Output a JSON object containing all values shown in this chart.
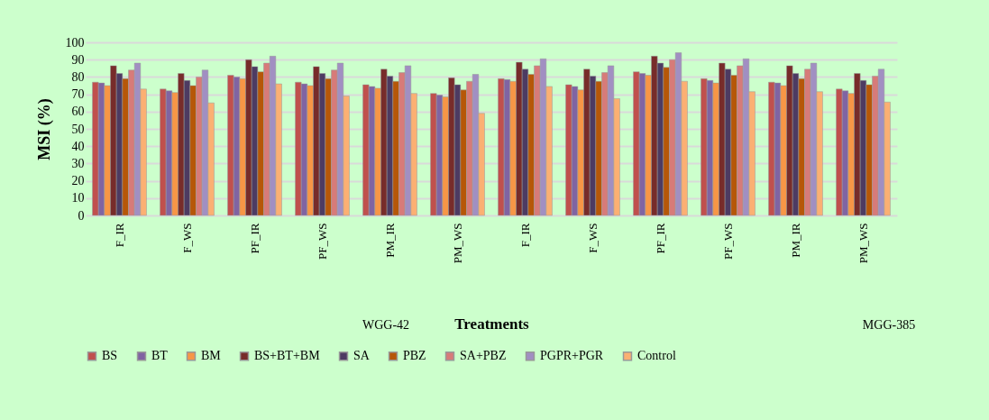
{
  "chart_data": {
    "type": "bar",
    "xlabel": "Treatments",
    "ylabel": "MSI (%)",
    "categories": [
      "F_IR",
      "F_WS",
      "PF_IR",
      "PF_WS",
      "PM_IR",
      "PM_WS",
      "F_IR",
      "F_WS",
      "PF_IR",
      "PF_WS",
      "PM_IR",
      "PM_WS"
    ],
    "series": [
      {
        "name": "BS",
        "color": "#c0504d",
        "values": [
          77,
          73,
          81,
          77,
          75.5,
          70.5,
          79,
          75.5,
          83,
          79,
          77,
          73
        ]
      },
      {
        "name": "BT",
        "color": "#8064a2",
        "values": [
          76.5,
          72,
          80,
          76,
          74.5,
          69.5,
          78.5,
          74.5,
          82,
          78,
          76.5,
          72
        ]
      },
      {
        "name": "BM",
        "color": "#f79646",
        "values": [
          75,
          71,
          79,
          75,
          73.5,
          68.5,
          77.5,
          72.5,
          81,
          76.5,
          75,
          70.5
        ]
      },
      {
        "name": "BS+BT+BM",
        "color": "#772c2a",
        "values": [
          86.5,
          82,
          90,
          86,
          84.5,
          79.5,
          88.5,
          84.5,
          92,
          88,
          86.5,
          82
        ]
      },
      {
        "name": "SA",
        "color": "#4d3b62",
        "values": [
          82,
          78,
          86,
          82,
          80.5,
          75.5,
          84.5,
          80.5,
          88,
          84.5,
          82,
          78
        ]
      },
      {
        "name": "PBZ",
        "color": "#b65708",
        "values": [
          79,
          75,
          83,
          79,
          77.5,
          72.5,
          81.5,
          77.5,
          85.5,
          81,
          79,
          75.5
        ]
      },
      {
        "name": "SA+PBZ",
        "color": "#d77b79",
        "values": [
          84,
          80,
          88,
          84,
          82.5,
          77.5,
          86.5,
          82.5,
          90,
          86.5,
          84.5,
          80.5
        ]
      },
      {
        "name": "PGPR+PGR",
        "color": "#a18fc2",
        "values": [
          88,
          84,
          92,
          88,
          86.5,
          81.5,
          90.5,
          86.5,
          94,
          90.5,
          88,
          84.5
        ]
      },
      {
        "name": "Control",
        "color": "#fbb073",
        "values": [
          73,
          65,
          76,
          69,
          70.5,
          59,
          74.5,
          67.5,
          77.5,
          71.5,
          71.5,
          65.5
        ]
      }
    ],
    "ylim": [
      0,
      100
    ],
    "yticks": [
      0,
      10,
      20,
      30,
      40,
      50,
      60,
      70,
      80,
      90,
      100
    ],
    "grid": "y",
    "legend": "bottom",
    "annotations": [
      "WGG-42",
      "MGG-385"
    ]
  }
}
